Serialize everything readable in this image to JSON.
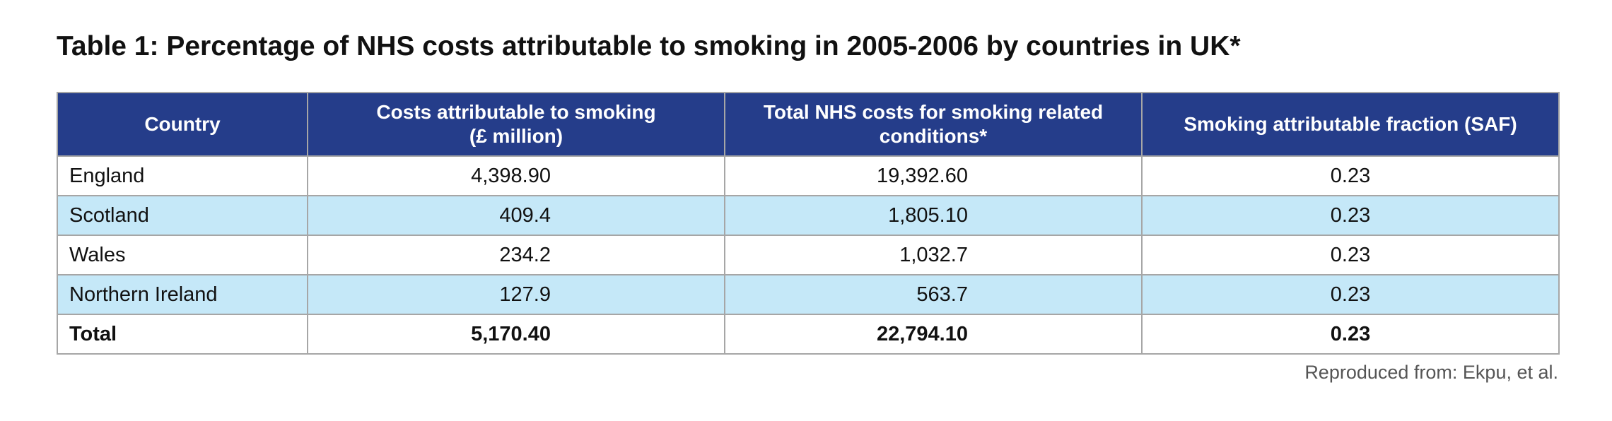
{
  "title": "Table 1: Percentage of NHS costs attributable to smoking in 2005-2006 by countries in UK*",
  "table": {
    "headers": [
      "Country",
      "Costs attributable to smoking\n(£ million)",
      "Total NHS costs for smoking related conditions*",
      "Smoking attributable fraction (SAF)"
    ],
    "rows": [
      [
        "England",
        "4,398.90",
        "19,392.60",
        "0.23"
      ],
      [
        "Scotland",
        "409.4",
        "1,805.10",
        "0.23"
      ],
      [
        "Wales",
        "234.2",
        "1,032.7",
        "0.23"
      ],
      [
        "Northern Ireland",
        "127.9",
        "563.7",
        "0.23"
      ]
    ],
    "total": [
      "Total",
      "5,170.40",
      "22,794.10",
      "0.23"
    ]
  },
  "source": "Reproduced from: Ekpu, et al.",
  "colors": {
    "header_bg": "#253d8a",
    "header_text": "#ffffff",
    "alt_row_bg": "#c5e8f8",
    "border": "#a6a6a6"
  }
}
